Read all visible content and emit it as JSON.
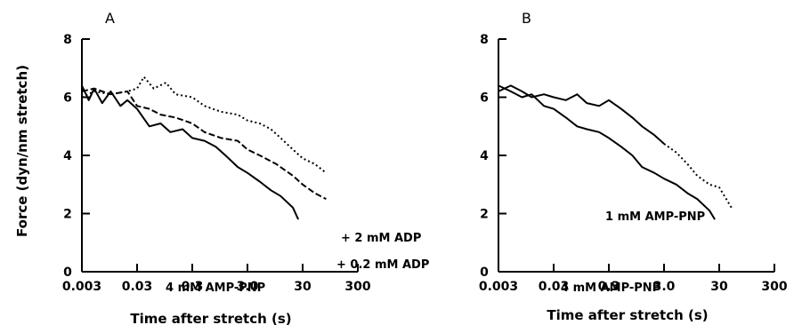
{
  "ylabel": "Force (dyn/nm stretch)",
  "chart_data": [
    {
      "panel": "A",
      "type": "line",
      "xlabel": "Time after stretch (s)",
      "x_scale": "log",
      "xlim": [
        0.003,
        300
      ],
      "ylim": [
        0,
        8
      ],
      "x_ticks": [
        "0.003",
        "0.03",
        "0.3",
        "3.0",
        "30",
        "300"
      ],
      "y_ticks": [
        "0",
        "2",
        "4",
        "6",
        "8"
      ],
      "series": [
        {
          "name": "4 mM AMP-PNP",
          "style": "solid",
          "x": [
            0.003,
            0.004,
            0.005,
            0.007,
            0.01,
            0.015,
            0.02,
            0.03,
            0.05,
            0.08,
            0.12,
            0.2,
            0.3,
            0.5,
            0.8,
            1.2,
            2,
            3,
            5,
            8,
            12,
            20,
            25
          ],
          "y": [
            6.4,
            5.9,
            6.3,
            5.8,
            6.2,
            5.7,
            5.9,
            5.6,
            5.0,
            5.1,
            4.8,
            4.9,
            4.6,
            4.5,
            4.3,
            4.0,
            3.6,
            3.4,
            3.1,
            2.8,
            2.6,
            2.2,
            1.8
          ]
        },
        {
          "name": "+ 0.2 mM ADP",
          "style": "dashed",
          "x": [
            0.003,
            0.005,
            0.01,
            0.02,
            0.03,
            0.05,
            0.08,
            0.15,
            0.3,
            0.5,
            1,
            2,
            3,
            5,
            10,
            20,
            30,
            50,
            80
          ],
          "y": [
            6.2,
            6.3,
            6.1,
            6.2,
            5.7,
            5.6,
            5.4,
            5.3,
            5.1,
            4.8,
            4.6,
            4.5,
            4.2,
            4.0,
            3.7,
            3.3,
            3.0,
            2.7,
            2.5
          ]
        },
        {
          "name": "+ 2 mM ADP",
          "style": "dotted",
          "x": [
            0.003,
            0.005,
            0.01,
            0.02,
            0.03,
            0.04,
            0.06,
            0.1,
            0.15,
            0.3,
            0.5,
            1,
            2,
            3,
            5,
            8,
            12,
            20,
            30,
            50,
            80
          ],
          "y": [
            6.0,
            6.2,
            6.1,
            6.2,
            6.3,
            6.7,
            6.3,
            6.5,
            6.1,
            6.0,
            5.7,
            5.5,
            5.4,
            5.2,
            5.1,
            4.9,
            4.6,
            4.2,
            3.9,
            3.7,
            3.4
          ]
        }
      ]
    },
    {
      "panel": "B",
      "type": "line",
      "xlabel": "Time after stretch (s)",
      "x_scale": "log",
      "xlim": [
        0.003,
        300
      ],
      "ylim": [
        0,
        8
      ],
      "x_ticks": [
        "0.003",
        "0.03",
        "0.3",
        "3.0",
        "30",
        "300"
      ],
      "y_ticks": [
        "0",
        "2",
        "4",
        "6",
        "8"
      ],
      "series": [
        {
          "name": "4 mM AMP-PNP",
          "style": "solid",
          "x": [
            0.003,
            0.005,
            0.008,
            0.012,
            0.02,
            0.03,
            0.05,
            0.08,
            0.12,
            0.2,
            0.3,
            0.5,
            0.8,
            1.2,
            2,
            3,
            5,
            8,
            12,
            20,
            25
          ],
          "y": [
            6.4,
            6.2,
            6.0,
            6.1,
            5.7,
            5.6,
            5.3,
            5.0,
            4.9,
            4.8,
            4.6,
            4.3,
            4.0,
            3.6,
            3.4,
            3.2,
            3.0,
            2.7,
            2.5,
            2.1,
            1.8
          ]
        },
        {
          "name": "1 mM AMP-PNP",
          "style": "solid-then-dotted",
          "x": [
            0.003,
            0.005,
            0.008,
            0.012,
            0.02,
            0.03,
            0.05,
            0.08,
            0.12,
            0.2,
            0.3,
            0.5,
            0.8,
            1.2,
            2,
            3,
            5,
            8,
            12,
            20,
            30,
            50
          ],
          "y": [
            6.2,
            6.4,
            6.2,
            6.0,
            6.1,
            6.0,
            5.9,
            6.1,
            5.8,
            5.7,
            5.9,
            5.6,
            5.3,
            5.0,
            4.7,
            4.4,
            4.1,
            3.7,
            3.3,
            3.0,
            2.9,
            2.2
          ]
        }
      ]
    }
  ]
}
